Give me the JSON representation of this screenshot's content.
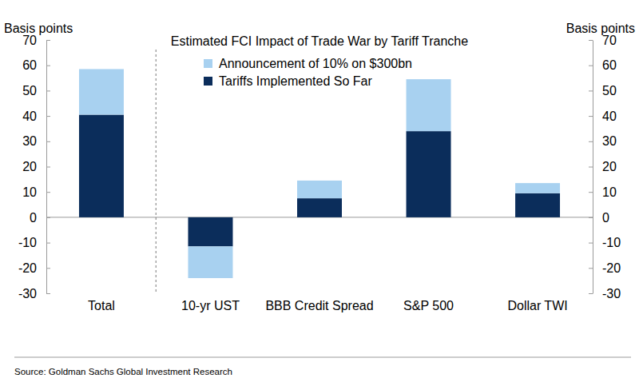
{
  "chart_data": {
    "type": "bar",
    "stacked": true,
    "title": "Estimated FCI Impact of Trade War by Tariff Tranche",
    "ylabel": "Basis points",
    "y2label": "Basis points",
    "source": "Source: Goldman Sachs Global Investment Research",
    "categories": [
      "Total",
      "10-yr UST",
      "BBB Credit Spread",
      "S&P 500",
      "Dollar TWI"
    ],
    "series": [
      {
        "name": "Announcement of 10% on $300bn",
        "color": "#a8d1f0",
        "values": [
          18,
          -12.5,
          7,
          20.5,
          4
        ]
      },
      {
        "name": "Tariffs Implemented So Far",
        "color": "#0b2d5b",
        "values": [
          40.5,
          -11.5,
          7.5,
          34,
          9.5
        ]
      }
    ],
    "ylim": [
      -30,
      70
    ],
    "yticks": [
      -30,
      -20,
      -10,
      0,
      10,
      20,
      30,
      40,
      50,
      60,
      70
    ],
    "y2lim": [
      -30,
      70
    ],
    "y2ticks": [
      -30,
      -20,
      -10,
      0,
      10,
      20,
      30,
      40,
      50,
      60,
      70
    ],
    "legend": "top",
    "grid": false
  }
}
